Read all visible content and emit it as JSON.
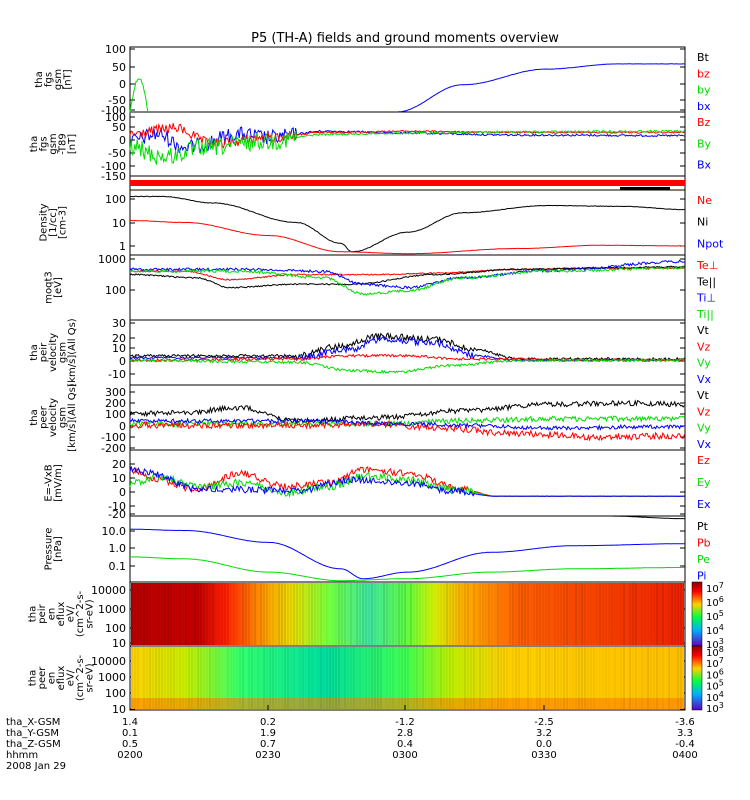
{
  "chart_data": {
    "type": "line",
    "title": "P5 (TH-A) fields and ground moments overview",
    "colors": {
      "black": "#000000",
      "red": "#ff0000",
      "green": "#00dd00",
      "blue": "#0000ff"
    },
    "panels": [
      {
        "id": "fgs",
        "ylabel": [
          "tha",
          "fgs",
          "gsm",
          "[nT]"
        ],
        "yticks": [
          "100",
          "50",
          "0",
          "-50",
          "-100"
        ],
        "legend": [
          {
            "text": "Bt",
            "color": "black"
          },
          {
            "text": "bz",
            "color": "red"
          },
          {
            "text": "by",
            "color": "green"
          },
          {
            "text": "bx",
            "color": "blue"
          }
        ]
      },
      {
        "id": "fgs-t89",
        "ylabel": [
          "tha",
          "fgs",
          "gsm",
          "-T89",
          "[nT]"
        ],
        "yticks": [
          "100",
          "50",
          "0",
          "-50",
          "-100",
          "-150"
        ],
        "legend": [
          {
            "text": "Bz",
            "color": "red"
          },
          {
            "text": "By",
            "color": "green"
          },
          {
            "text": "Bx",
            "color": "blue"
          }
        ]
      },
      {
        "id": "mode",
        "ylabel": [],
        "yticks": [],
        "legend": []
      },
      {
        "id": "density",
        "ylabel": [
          "Density",
          "[1/cc]",
          "[cm-3]"
        ],
        "yticks": [
          "100",
          "10",
          "1"
        ],
        "legend": [
          {
            "text": "Ne",
            "color": "red"
          },
          {
            "text": "Ni",
            "color": "black"
          },
          {
            "text": "Npot",
            "color": "blue"
          }
        ]
      },
      {
        "id": "temp",
        "ylabel": [
          "moqt3",
          "[eV]"
        ],
        "yticks": [
          "1000",
          "100"
        ],
        "legend": [
          {
            "text": "Te⊥",
            "color": "red"
          },
          {
            "text": "Te||",
            "color": "black"
          },
          {
            "text": "Ti⊥",
            "color": "blue"
          },
          {
            "text": "Ti||",
            "color": "green"
          }
        ]
      },
      {
        "id": "peir-vel",
        "ylabel": [
          "tha",
          "peir",
          "velocity",
          "gsm",
          "[km/s](All Qs)"
        ],
        "yticks": [
          "30",
          "20",
          "10",
          "0",
          "-10"
        ],
        "legend": [
          {
            "text": "Vt",
            "color": "black"
          },
          {
            "text": "Vz",
            "color": "red"
          },
          {
            "text": "Vy",
            "color": "green"
          },
          {
            "text": "Vx",
            "color": "blue"
          }
        ]
      },
      {
        "id": "peer-vel",
        "ylabel": [
          "tha",
          "peer",
          "velocity",
          "gsm",
          "[km/s](All Qs)"
        ],
        "yticks": [
          "300",
          "200",
          "100",
          "0",
          "-100",
          "-200"
        ],
        "legend": [
          {
            "text": "Vt",
            "color": "black"
          },
          {
            "text": "Vz",
            "color": "red"
          },
          {
            "text": "Vy",
            "color": "green"
          },
          {
            "text": "Vx",
            "color": "blue"
          }
        ]
      },
      {
        "id": "efield",
        "ylabel": [
          "E=-VxB",
          "[mV/m]"
        ],
        "yticks": [
          "20",
          "10",
          "0",
          "-10",
          "-20"
        ],
        "legend": [
          {
            "text": "Ez",
            "color": "red"
          },
          {
            "text": "Ey",
            "color": "green"
          },
          {
            "text": "Ex",
            "color": "blue"
          }
        ]
      },
      {
        "id": "pressure",
        "ylabel": [
          "Pressure",
          "[nPa]"
        ],
        "yticks": [
          "10.0",
          "1.0",
          "0.1"
        ],
        "legend": [
          {
            "text": "Pt",
            "color": "black"
          },
          {
            "text": "Pb",
            "color": "red"
          },
          {
            "text": "Pe",
            "color": "green"
          },
          {
            "text": "Pi",
            "color": "blue"
          }
        ]
      },
      {
        "id": "peir-spec",
        "ylabel": [
          "tha",
          "peir",
          "en",
          "eflux",
          "eV/",
          "(cm^2-s-",
          "sr-eV)"
        ],
        "yticks": [
          "10000",
          "1000",
          "100",
          "10"
        ],
        "legend": []
      },
      {
        "id": "peer-spec",
        "ylabel": [
          "tha",
          "peer",
          "en",
          "eflux",
          "eV/",
          "(cm^2-s-",
          "sr-eV)"
        ],
        "yticks": [
          "10000",
          "1000",
          "100",
          "10"
        ],
        "legend": []
      }
    ],
    "colorbars": [
      {
        "ticks": [
          "10^7",
          "10^6",
          "10^5",
          "10^4",
          "10^3"
        ]
      },
      {
        "ticks": [
          "10^8",
          "10^7",
          "10^6",
          "10^5",
          "10^4",
          "10^3"
        ]
      }
    ],
    "x_axis": {
      "rows": [
        {
          "label": "tha_X-GSM",
          "values": [
            "1.4",
            "0.2",
            "-1.2",
            "-2.5",
            "-3.6"
          ]
        },
        {
          "label": "tha_Y-GSM",
          "values": [
            "0.1",
            "1.9",
            "2.8",
            "3.2",
            "3.3"
          ]
        },
        {
          "label": "tha_Z-GSM",
          "values": [
            "0.5",
            "0.7",
            "0.4",
            "0.0",
            "-0.4"
          ]
        },
        {
          "label": "hhmm",
          "values": [
            "0200",
            "0230",
            "0300",
            "0330",
            "0400"
          ]
        }
      ],
      "date": "2008 Jan 29"
    }
  }
}
